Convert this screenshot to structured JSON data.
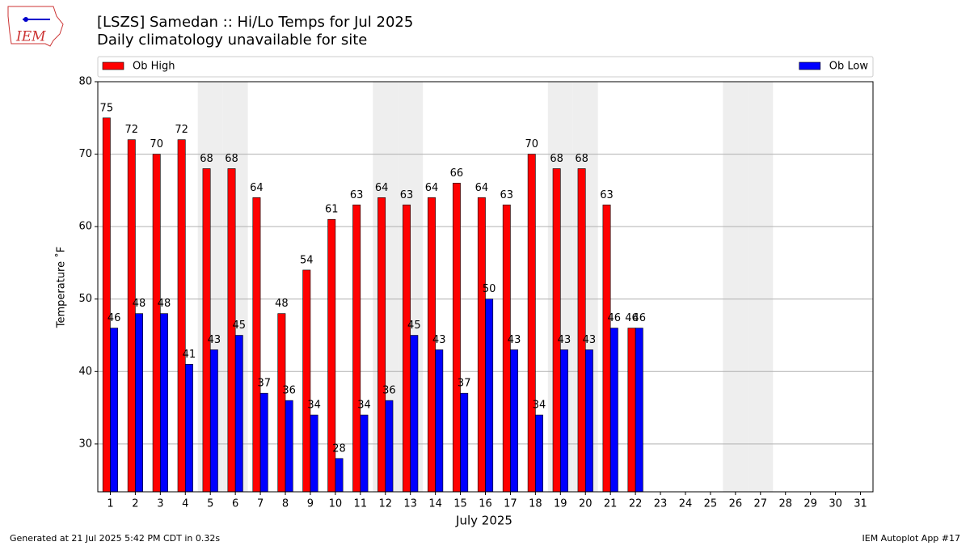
{
  "chart_data": {
    "type": "bar",
    "logo_text": "IEM",
    "title": "[LSZS] Samedan :: Hi/Lo Temps for Jul 2025",
    "subtitle": "Daily climatology unavailable for site",
    "xlabel": "July 2025",
    "ylabel": "Temperature ˚F",
    "footer_left": "Generated at 21 Jul 2025 5:42 PM CDT in 0.32s",
    "footer_right": "IEM Autoplot App #17",
    "categories": [
      "1",
      "2",
      "3",
      "4",
      "5",
      "6",
      "7",
      "8",
      "9",
      "10",
      "11",
      "12",
      "13",
      "14",
      "15",
      "16",
      "17",
      "18",
      "19",
      "20",
      "21",
      "22",
      "23",
      "24",
      "25",
      "26",
      "27",
      "28",
      "29",
      "30",
      "31"
    ],
    "series": [
      {
        "name": "Ob High",
        "color": "#ff0000",
        "values": [
          75,
          72,
          70,
          72,
          68,
          68,
          64,
          48,
          54,
          61,
          63,
          64,
          63,
          64,
          66,
          64,
          63,
          70,
          68,
          68,
          63,
          46,
          null,
          null,
          null,
          null,
          null,
          null,
          null,
          null,
          null
        ]
      },
      {
        "name": "Ob Low",
        "color": "#0000ff",
        "values": [
          46,
          48,
          48,
          41,
          43,
          45,
          37,
          36,
          34,
          28,
          34,
          36,
          45,
          43,
          37,
          50,
          43,
          34,
          43,
          43,
          46,
          46,
          null,
          null,
          null,
          null,
          null,
          null,
          null,
          null,
          null
        ]
      }
    ],
    "shaded_days": [
      5,
      6,
      12,
      13,
      19,
      20,
      26,
      27
    ],
    "ylim": [
      23.4,
      80
    ],
    "yticks": [
      30,
      40,
      50,
      60,
      70,
      80
    ],
    "grid": true
  }
}
